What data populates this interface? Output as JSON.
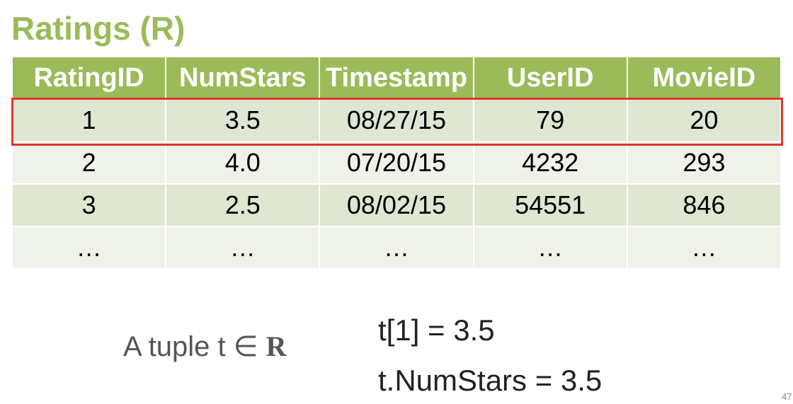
{
  "slide": {
    "title": "Ratings (R)",
    "page_number": "47"
  },
  "table": {
    "columns": [
      "RatingID",
      "NumStars",
      "Timestamp",
      "UserID",
      "MovieID"
    ],
    "rows": [
      [
        "1",
        "3.5",
        "08/27/15",
        "79",
        "20"
      ],
      [
        "2",
        "4.0",
        "07/20/15",
        "4232",
        "293"
      ],
      [
        "3",
        "2.5",
        "08/02/15",
        "54551",
        "846"
      ],
      [
        "…",
        "…",
        "…",
        "…",
        "…"
      ]
    ],
    "highlighted_row": 1
  },
  "annotation": {
    "tuple_text": "A tuple t ∈ ",
    "relation_name": "R",
    "expr_index": "t[1] = 3.5",
    "expr_attr": "t.NumStars = 3.5"
  },
  "colors": {
    "title": "#9bbb59",
    "header_bg": "#9bbb59",
    "row_odd_bg": "#dfe6d1",
    "row_even_bg": "#eff2e9",
    "highlight_border": "#e0372b"
  }
}
